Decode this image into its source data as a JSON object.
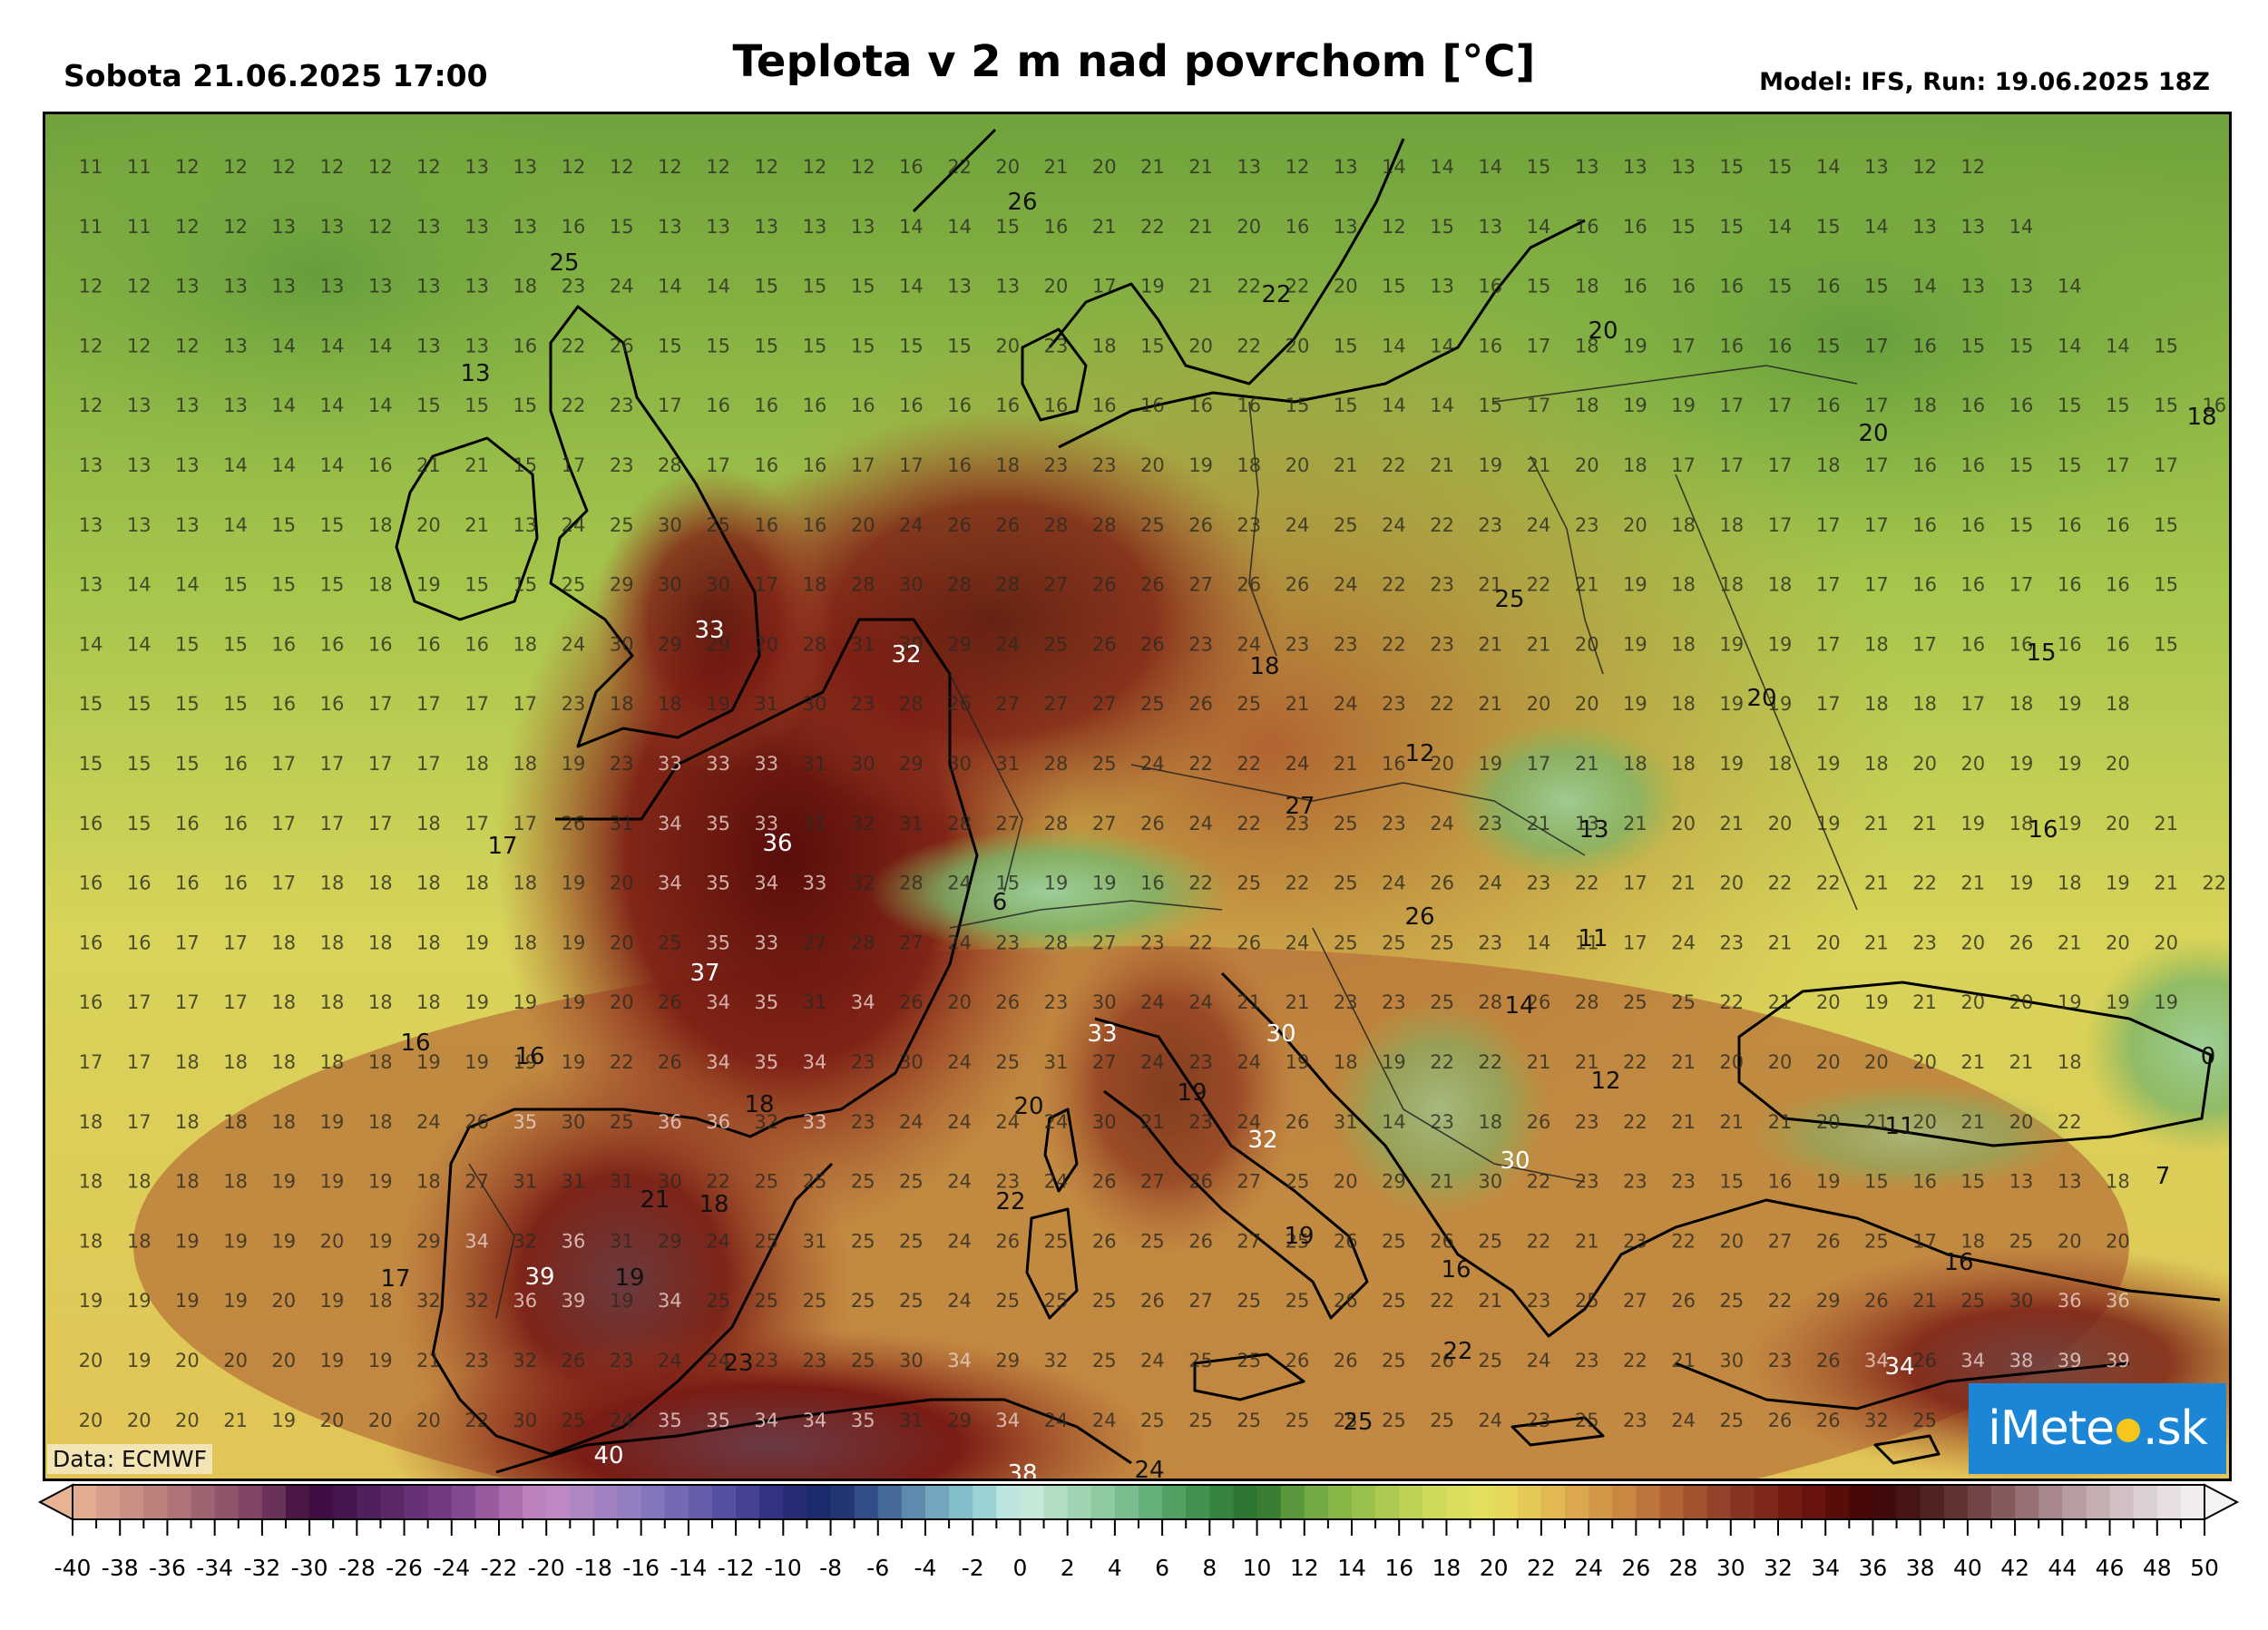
{
  "header": {
    "date": "Sobota 21.06.2025 17:00",
    "title": "Teplota v 2 m nad povrchom [°C]",
    "model": "Model: IFS, Run: 19.06.2025 18Z"
  },
  "credit": "Data: ECMWF",
  "logo": {
    "prefix": "iMete",
    "suffix": ".sk"
  },
  "colorbar": {
    "min": -40,
    "max": 50,
    "step_label": 2,
    "tick_labels": [
      "-40",
      "-38",
      "-36",
      "-34",
      "-32",
      "-30",
      "-28",
      "-26",
      "-24",
      "-22",
      "-20",
      "-18",
      "-16",
      "-14",
      "-12",
      "-10",
      "-8",
      "-6",
      "-4",
      "-2",
      "0",
      "2",
      "4",
      "6",
      "8",
      "10",
      "12",
      "14",
      "16",
      "18",
      "20",
      "22",
      "24",
      "26",
      "28",
      "30",
      "32",
      "34",
      "36",
      "38",
      "40",
      "42",
      "44",
      "46",
      "48",
      "50"
    ]
  },
  "colors": {
    "cold": "#6b3c7a",
    "zero": "#bde3d6",
    "mild": "#9bc24a",
    "warm": "#e3d65a",
    "hot": "#b8622e",
    "very_hot": "#7a1a12",
    "extreme": "#3a0a08",
    "logo_bg": "#1c86d6"
  },
  "grid_values": [
    [
      "11",
      "11",
      "12",
      "12",
      "12",
      "12",
      "12",
      "12",
      "13",
      "13",
      "12",
      "12",
      "12",
      "12",
      "12",
      "12",
      "12",
      "16",
      "22",
      "20",
      "21",
      "20",
      "21",
      "21",
      "13",
      "12",
      "13",
      "14",
      "14",
      "14",
      "15",
      "13",
      "13",
      "13",
      "15",
      "15",
      "14",
      "13",
      "12",
      "12"
    ],
    [
      "11",
      "11",
      "12",
      "12",
      "13",
      "13",
      "12",
      "13",
      "13",
      "13",
      "16",
      "15",
      "13",
      "13",
      "13",
      "13",
      "13",
      "14",
      "14",
      "15",
      "16",
      "21",
      "22",
      "21",
      "20",
      "16",
      "13",
      "12",
      "15",
      "13",
      "14",
      "16",
      "16",
      "15",
      "15",
      "14",
      "15",
      "14",
      "13",
      "13",
      "14"
    ],
    [
      "12",
      "12",
      "13",
      "13",
      "13",
      "13",
      "13",
      "13",
      "13",
      "18",
      "23",
      "24",
      "14",
      "14",
      "15",
      "15",
      "15",
      "14",
      "13",
      "13",
      "20",
      "17",
      "19",
      "21",
      "22",
      "22",
      "20",
      "15",
      "13",
      "16",
      "15",
      "18",
      "16",
      "16",
      "16",
      "15",
      "16",
      "15",
      "14",
      "13",
      "13",
      "14"
    ],
    [
      "12",
      "12",
      "12",
      "13",
      "14",
      "14",
      "14",
      "13",
      "13",
      "16",
      "22",
      "26",
      "15",
      "15",
      "15",
      "15",
      "15",
      "15",
      "15",
      "20",
      "23",
      "18",
      "15",
      "20",
      "22",
      "20",
      "15",
      "14",
      "14",
      "16",
      "17",
      "18",
      "19",
      "17",
      "16",
      "16",
      "15",
      "17",
      "16",
      "15",
      "15",
      "14",
      "14",
      "15"
    ],
    [
      "12",
      "13",
      "13",
      "13",
      "14",
      "14",
      "14",
      "15",
      "15",
      "15",
      "22",
      "23",
      "17",
      "16",
      "16",
      "16",
      "16",
      "16",
      "16",
      "16",
      "16",
      "16",
      "16",
      "16",
      "16",
      "15",
      "15",
      "14",
      "14",
      "15",
      "17",
      "18",
      "19",
      "19",
      "17",
      "17",
      "16",
      "17",
      "18",
      "16",
      "16",
      "15",
      "15",
      "15",
      "16"
    ],
    [
      "13",
      "13",
      "13",
      "14",
      "14",
      "14",
      "16",
      "21",
      "21",
      "15",
      "17",
      "23",
      "28",
      "17",
      "16",
      "16",
      "17",
      "17",
      "16",
      "18",
      "23",
      "23",
      "20",
      "19",
      "18",
      "20",
      "21",
      "22",
      "21",
      "19",
      "21",
      "20",
      "18",
      "17",
      "17",
      "17",
      "18",
      "17",
      "16",
      "16",
      "15",
      "15",
      "17",
      "17"
    ],
    [
      "13",
      "13",
      "13",
      "14",
      "15",
      "15",
      "18",
      "20",
      "21",
      "13",
      "24",
      "25",
      "30",
      "25",
      "16",
      "16",
      "20",
      "24",
      "26",
      "26",
      "28",
      "28",
      "25",
      "26",
      "23",
      "24",
      "25",
      "24",
      "22",
      "23",
      "24",
      "23",
      "20",
      "18",
      "18",
      "17",
      "17",
      "17",
      "16",
      "16",
      "15",
      "16",
      "16",
      "15"
    ],
    [
      "13",
      "14",
      "14",
      "15",
      "15",
      "15",
      "18",
      "19",
      "15",
      "15",
      "25",
      "29",
      "30",
      "30",
      "17",
      "18",
      "28",
      "30",
      "28",
      "28",
      "27",
      "26",
      "26",
      "27",
      "26",
      "26",
      "24",
      "22",
      "23",
      "21",
      "22",
      "21",
      "19",
      "18",
      "18",
      "18",
      "17",
      "17",
      "16",
      "16",
      "17",
      "16",
      "16",
      "15"
    ],
    [
      "14",
      "14",
      "15",
      "15",
      "16",
      "16",
      "16",
      "16",
      "16",
      "18",
      "24",
      "30",
      "29",
      "29",
      "20",
      "28",
      "31",
      "30",
      "29",
      "24",
      "25",
      "26",
      "26",
      "23",
      "24",
      "23",
      "23",
      "22",
      "23",
      "21",
      "21",
      "20",
      "19",
      "18",
      "19",
      "19",
      "17",
      "18",
      "17",
      "16",
      "16",
      "16",
      "16",
      "15"
    ],
    [
      "15",
      "15",
      "15",
      "15",
      "16",
      "16",
      "17",
      "17",
      "17",
      "17",
      "23",
      "18",
      "18",
      "19",
      "31",
      "30",
      "23",
      "28",
      "26",
      "27",
      "27",
      "27",
      "25",
      "26",
      "25",
      "21",
      "24",
      "23",
      "22",
      "21",
      "20",
      "20",
      "19",
      "18",
      "19",
      "19",
      "17",
      "18",
      "18",
      "17",
      "18",
      "19",
      "18"
    ],
    [
      "15",
      "15",
      "15",
      "16",
      "17",
      "17",
      "17",
      "17",
      "18",
      "18",
      "19",
      "23",
      "33",
      "33",
      "33",
      "31",
      "30",
      "29",
      "30",
      "31",
      "28",
      "25",
      "24",
      "22",
      "22",
      "24",
      "21",
      "16",
      "20",
      "19",
      "17",
      "21",
      "18",
      "18",
      "19",
      "18",
      "19",
      "18",
      "20",
      "20",
      "19",
      "19",
      "20"
    ],
    [
      "16",
      "15",
      "16",
      "16",
      "17",
      "17",
      "17",
      "18",
      "17",
      "17",
      "26",
      "31",
      "34",
      "35",
      "33",
      "31",
      "32",
      "31",
      "28",
      "27",
      "28",
      "27",
      "26",
      "24",
      "22",
      "23",
      "25",
      "23",
      "24",
      "23",
      "21",
      "13",
      "21",
      "20",
      "21",
      "20",
      "19",
      "21",
      "21",
      "19",
      "18",
      "19",
      "20",
      "21"
    ],
    [
      "16",
      "16",
      "16",
      "16",
      "17",
      "18",
      "18",
      "18",
      "18",
      "18",
      "19",
      "20",
      "34",
      "35",
      "34",
      "33",
      "32",
      "28",
      "24",
      "15",
      "19",
      "19",
      "16",
      "22",
      "25",
      "22",
      "25",
      "24",
      "26",
      "24",
      "23",
      "22",
      "17",
      "21",
      "20",
      "22",
      "22",
      "21",
      "22",
      "21",
      "19",
      "18",
      "19",
      "21",
      "22"
    ],
    [
      "16",
      "16",
      "17",
      "17",
      "18",
      "18",
      "18",
      "18",
      "19",
      "18",
      "19",
      "20",
      "25",
      "35",
      "33",
      "27",
      "28",
      "27",
      "24",
      "23",
      "28",
      "27",
      "23",
      "22",
      "26",
      "24",
      "25",
      "25",
      "25",
      "23",
      "14",
      "11",
      "17",
      "24",
      "23",
      "21",
      "20",
      "21",
      "23",
      "20",
      "26",
      "21",
      "20",
      "20"
    ],
    [
      "16",
      "17",
      "17",
      "17",
      "18",
      "18",
      "18",
      "18",
      "19",
      "19",
      "19",
      "20",
      "26",
      "34",
      "35",
      "31",
      "34",
      "26",
      "20",
      "26",
      "23",
      "30",
      "24",
      "24",
      "21",
      "21",
      "23",
      "23",
      "25",
      "28",
      "26",
      "28",
      "25",
      "25",
      "22",
      "21",
      "20",
      "19",
      "21",
      "20",
      "20",
      "19",
      "19",
      "19"
    ],
    [
      "17",
      "17",
      "18",
      "18",
      "18",
      "18",
      "18",
      "19",
      "19",
      "19",
      "19",
      "22",
      "26",
      "34",
      "35",
      "34",
      "23",
      "30",
      "24",
      "25",
      "31",
      "27",
      "24",
      "23",
      "24",
      "19",
      "18",
      "19",
      "22",
      "22",
      "21",
      "21",
      "22",
      "21",
      "20",
      "20",
      "20",
      "20",
      "20",
      "21",
      "21",
      "18"
    ],
    [
      "18",
      "17",
      "18",
      "18",
      "18",
      "19",
      "18",
      "24",
      "26",
      "35",
      "30",
      "25",
      "36",
      "36",
      "32",
      "33",
      "23",
      "24",
      "24",
      "24",
      "24",
      "30",
      "21",
      "23",
      "24",
      "26",
      "31",
      "14",
      "23",
      "18",
      "26",
      "23",
      "22",
      "21",
      "21",
      "21",
      "20",
      "21",
      "20",
      "21",
      "20",
      "22"
    ],
    [
      "18",
      "18",
      "18",
      "18",
      "19",
      "19",
      "19",
      "18",
      "27",
      "31",
      "31",
      "31",
      "30",
      "22",
      "25",
      "25",
      "25",
      "25",
      "24",
      "23",
      "24",
      "26",
      "27",
      "26",
      "27",
      "25",
      "20",
      "29",
      "21",
      "30",
      "22",
      "23",
      "23",
      "23",
      "15",
      "16",
      "19",
      "15",
      "16",
      "15",
      "13",
      "13",
      "18"
    ],
    [
      "18",
      "18",
      "19",
      "19",
      "19",
      "20",
      "19",
      "29",
      "34",
      "32",
      "36",
      "31",
      "29",
      "24",
      "25",
      "31",
      "25",
      "25",
      "24",
      "26",
      "25",
      "26",
      "25",
      "26",
      "27",
      "25",
      "26",
      "25",
      "26",
      "25",
      "22",
      "21",
      "23",
      "22",
      "20",
      "27",
      "26",
      "25",
      "17",
      "18",
      "25",
      "20",
      "20"
    ],
    [
      "19",
      "19",
      "19",
      "19",
      "20",
      "19",
      "18",
      "32",
      "32",
      "36",
      "39",
      "19",
      "34",
      "25",
      "25",
      "25",
      "25",
      "25",
      "24",
      "25",
      "25",
      "25",
      "26",
      "27",
      "25",
      "25",
      "26",
      "25",
      "22",
      "21",
      "23",
      "25",
      "27",
      "26",
      "25",
      "22",
      "29",
      "26",
      "21",
      "25",
      "30",
      "36",
      "36"
    ],
    [
      "20",
      "19",
      "20",
      "20",
      "20",
      "19",
      "19",
      "21",
      "23",
      "32",
      "26",
      "23",
      "24",
      "24",
      "23",
      "23",
      "25",
      "30",
      "34",
      "29",
      "32",
      "25",
      "24",
      "25",
      "25",
      "26",
      "26",
      "25",
      "26",
      "25",
      "24",
      "23",
      "22",
      "21",
      "30",
      "23",
      "26",
      "34",
      "26",
      "34",
      "38",
      "39",
      "39"
    ],
    [
      "20",
      "20",
      "20",
      "21",
      "19",
      "20",
      "20",
      "20",
      "22",
      "30",
      "25",
      "24",
      "35",
      "35",
      "34",
      "34",
      "35",
      "31",
      "29",
      "34",
      "24",
      "24",
      "25",
      "25",
      "25",
      "25",
      "25",
      "25",
      "25",
      "24",
      "23",
      "25",
      "23",
      "24",
      "25",
      "26",
      "26",
      "32",
      "25"
    ]
  ],
  "place_values": [
    {
      "v": "26",
      "t": "26"
    },
    {
      "v": "25",
      "t": "25"
    },
    {
      "v": "22",
      "t": "22"
    },
    {
      "v": "20",
      "t": "20"
    },
    {
      "v": "13",
      "t": "13"
    },
    {
      "v": "20",
      "t": "20"
    },
    {
      "v": "18",
      "t": "18"
    },
    {
      "v": "33",
      "t": "33"
    },
    {
      "v": "32",
      "t": "32"
    },
    {
      "v": "25",
      "t": "25"
    },
    {
      "v": "18",
      "t": "18"
    },
    {
      "v": "15",
      "t": "15"
    },
    {
      "v": "20",
      "t": "20"
    },
    {
      "v": "12",
      "t": "12"
    },
    {
      "v": "27",
      "t": "27"
    },
    {
      "v": "36",
      "t": "36"
    },
    {
      "v": "17",
      "t": "17"
    },
    {
      "v": "13",
      "t": "13"
    },
    {
      "v": "16",
      "t": "16"
    },
    {
      "v": "6",
      "t": "6"
    },
    {
      "v": "26",
      "t": "26"
    },
    {
      "v": "11",
      "t": "11"
    },
    {
      "v": "37",
      "t": "37"
    },
    {
      "v": "14",
      "t": "14"
    },
    {
      "v": "16",
      "t": "16"
    },
    {
      "v": "33",
      "t": "33"
    },
    {
      "v": "30",
      "t": "30"
    },
    {
      "v": "16",
      "t": "16"
    },
    {
      "v": "12",
      "t": "12"
    },
    {
      "v": "18",
      "t": "18"
    },
    {
      "v": "20",
      "t": "20"
    },
    {
      "v": "19",
      "t": "19"
    },
    {
      "v": "11",
      "t": "11"
    },
    {
      "v": "0",
      "t": "0"
    },
    {
      "v": "32",
      "t": "32"
    },
    {
      "v": "30",
      "t": "30"
    },
    {
      "v": "21",
      "t": "21"
    },
    {
      "v": "22",
      "t": "22"
    },
    {
      "v": "19",
      "t": "19"
    },
    {
      "v": "7",
      "t": "7"
    },
    {
      "v": "16",
      "t": "16"
    },
    {
      "v": "17",
      "t": "17"
    },
    {
      "v": "39",
      "t": "39"
    },
    {
      "v": "19",
      "t": "19"
    },
    {
      "v": "23",
      "t": "23"
    },
    {
      "v": "22",
      "t": "22"
    },
    {
      "v": "34",
      "t": "34"
    },
    {
      "v": "16",
      "t": "16"
    },
    {
      "v": "25",
      "t": "25"
    },
    {
      "v": "40",
      "t": "40"
    },
    {
      "v": "38",
      "t": "38"
    },
    {
      "v": "24",
      "t": "24"
    },
    {
      "v": "18",
      "t": "18"
    }
  ]
}
